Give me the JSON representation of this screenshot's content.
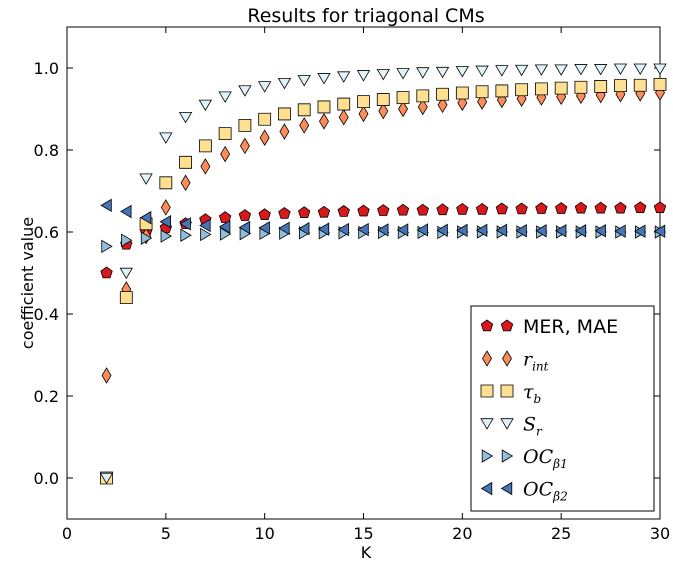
{
  "chart_data": {
    "type": "scatter",
    "title": "Results for triagonal CMs",
    "xlabel": "K",
    "ylabel": "coefficient value",
    "xlim": [
      0,
      30
    ],
    "ylim": [
      -0.1,
      1.1
    ],
    "xticks": [
      0,
      5,
      10,
      15,
      20,
      25,
      30
    ],
    "yticks": [
      0.0,
      0.2,
      0.4,
      0.6,
      0.8,
      1.0
    ],
    "xtick_labels": [
      "0",
      "5",
      "10",
      "15",
      "20",
      "25",
      "30"
    ],
    "ytick_labels": [
      "0.0",
      "0.2",
      "0.4",
      "0.6",
      "0.8",
      "1.0"
    ],
    "grid": false,
    "legend_position": "lower-right",
    "x": [
      2,
      3,
      4,
      5,
      6,
      7,
      8,
      9,
      10,
      11,
      12,
      13,
      14,
      15,
      16,
      17,
      18,
      19,
      20,
      21,
      22,
      23,
      24,
      25,
      26,
      27,
      28,
      29,
      30
    ],
    "series": [
      {
        "name": "MER, MAE",
        "marker": "pentagon",
        "color": "#d7191c",
        "values": [
          0.5,
          0.57,
          0.6,
          0.61,
          0.62,
          0.63,
          0.635,
          0.64,
          0.642,
          0.645,
          0.647,
          0.648,
          0.65,
          0.651,
          0.652,
          0.653,
          0.653,
          0.654,
          0.655,
          0.655,
          0.656,
          0.656,
          0.657,
          0.657,
          0.658,
          0.658,
          0.658,
          0.659,
          0.659
        ]
      },
      {
        "name": "r_int",
        "name_base": "r",
        "name_sub": "int",
        "marker": "diamond",
        "color": "#fc8d59",
        "values": [
          0.25,
          0.46,
          0.59,
          0.66,
          0.72,
          0.76,
          0.79,
          0.81,
          0.83,
          0.845,
          0.86,
          0.87,
          0.88,
          0.888,
          0.895,
          0.9,
          0.905,
          0.91,
          0.915,
          0.918,
          0.922,
          0.925,
          0.928,
          0.93,
          0.932,
          0.934,
          0.936,
          0.938,
          0.94
        ]
      },
      {
        "name": "τ_b",
        "name_base": "τ",
        "name_sub": "b",
        "marker": "square",
        "color": "#fee090",
        "values": [
          0.0,
          0.44,
          0.62,
          0.72,
          0.77,
          0.81,
          0.84,
          0.86,
          0.875,
          0.888,
          0.898,
          0.905,
          0.912,
          0.918,
          0.923,
          0.928,
          0.932,
          0.936,
          0.939,
          0.942,
          0.944,
          0.947,
          0.949,
          0.951,
          0.953,
          0.955,
          0.957,
          0.958,
          0.96
        ]
      },
      {
        "name": "S_r",
        "name_base": "S",
        "name_sub": "r",
        "marker": "triangle-down",
        "color": "#e0f3f8",
        "values": [
          0.0,
          0.5,
          0.73,
          0.83,
          0.88,
          0.91,
          0.93,
          0.945,
          0.955,
          0.963,
          0.97,
          0.975,
          0.979,
          0.982,
          0.985,
          0.987,
          0.989,
          0.99,
          0.992,
          0.993,
          0.994,
          0.995,
          0.996,
          0.996,
          0.997,
          0.997,
          0.998,
          0.998,
          0.998
        ]
      },
      {
        "name": "OC_β1",
        "name_base": "OC",
        "name_sub": "β1",
        "marker": "triangle-right",
        "color": "#91bfdb",
        "values": [
          0.565,
          0.58,
          0.585,
          0.59,
          0.592,
          0.594,
          0.595,
          0.596,
          0.597,
          0.597,
          0.598,
          0.598,
          0.598,
          0.599,
          0.599,
          0.599,
          0.599,
          0.599,
          0.6,
          0.6,
          0.6,
          0.6,
          0.6,
          0.6,
          0.6,
          0.6,
          0.6,
          0.6,
          0.6
        ]
      },
      {
        "name": "OC_β2",
        "name_base": "OC",
        "name_sub": "β2",
        "marker": "triangle-left",
        "color": "#4575b4",
        "values": [
          0.665,
          0.65,
          0.635,
          0.625,
          0.62,
          0.616,
          0.613,
          0.611,
          0.61,
          0.609,
          0.608,
          0.607,
          0.606,
          0.606,
          0.605,
          0.605,
          0.605,
          0.604,
          0.604,
          0.604,
          0.604,
          0.603,
          0.603,
          0.603,
          0.603,
          0.603,
          0.602,
          0.602,
          0.602
        ]
      }
    ]
  }
}
